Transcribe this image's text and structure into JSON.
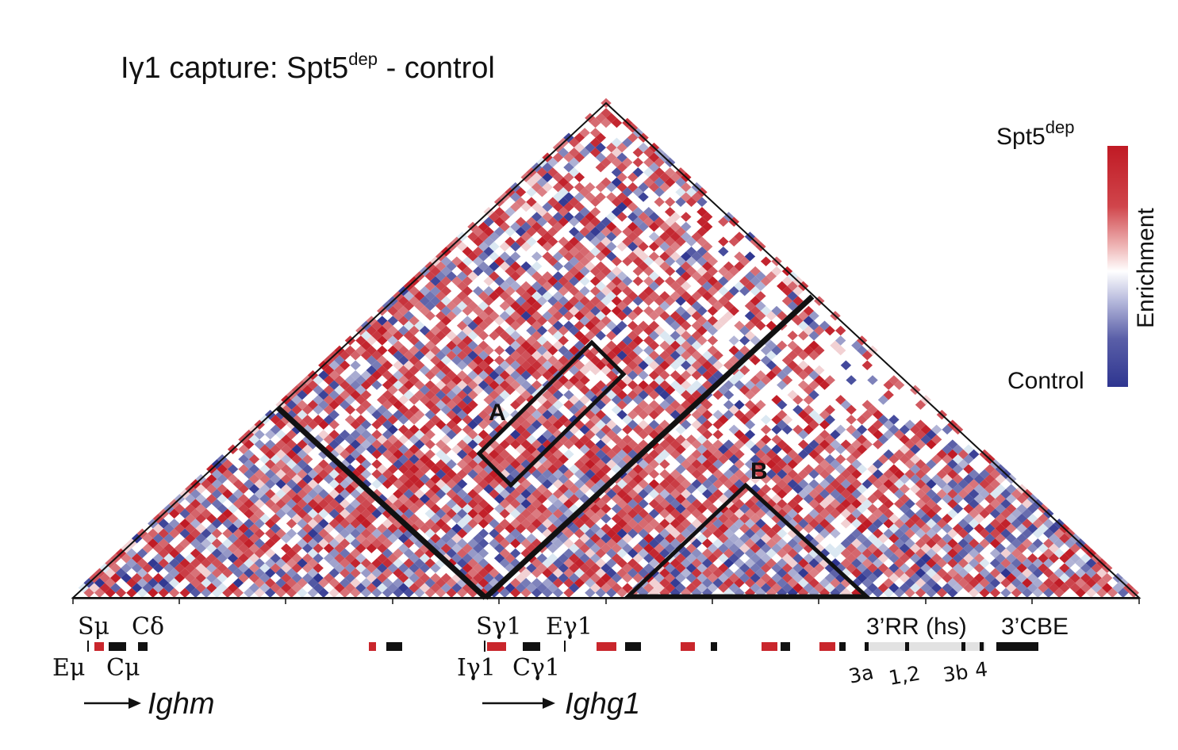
{
  "figure": {
    "title_prefix": "Iγ1 capture: Spt5",
    "title_sup": "dep",
    "title_suffix": " - control"
  },
  "legend": {
    "top_prefix": "Spt5",
    "top_sup": "dep",
    "bottom_label": "Control",
    "axis_label": "Enrichment",
    "colors": {
      "high": "#c01a24",
      "mid": "#ffffff",
      "low": "#2e3590"
    }
  },
  "regions": [
    {
      "label": "A"
    },
    {
      "label": "B"
    }
  ],
  "annotations": {
    "top_labels": [
      "Sμ",
      "Cδ",
      "Sγ1",
      "Eγ1",
      "3’RR (hs)",
      "3’CBE"
    ],
    "bottom_labels": [
      "Eμ",
      "Cμ",
      "Iγ1",
      "Cγ1"
    ],
    "hs_labels": [
      "3a",
      "1,2",
      "3b",
      "4"
    ],
    "genes": [
      "Ighm",
      "Ighg1"
    ]
  },
  "chart_data": {
    "type": "heatmap",
    "description_shape": "triangular contact matrix (upper triangle, rotated 45°)",
    "bins": 100,
    "color_scale": {
      "min_label": "Control",
      "max_label": "Spt5dep",
      "name": "Enrichment"
    }
  }
}
